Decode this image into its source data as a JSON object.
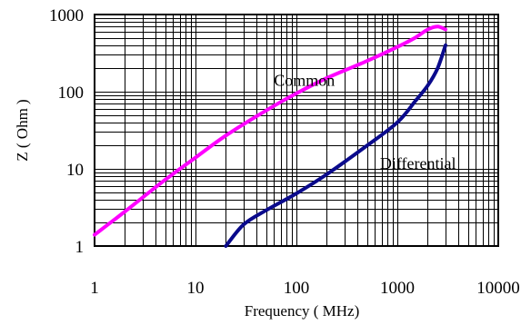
{
  "chart_data": {
    "type": "line",
    "xlabel": "Frequency ( MHz)",
    "ylabel": "Z ( Ohm )",
    "x_scale": "log",
    "y_scale": "log",
    "xlim": [
      1,
      10000
    ],
    "ylim": [
      1,
      1000
    ],
    "x_ticks": [
      {
        "value": 1,
        "label": "1"
      },
      {
        "value": 10,
        "label": "10"
      },
      {
        "value": 100,
        "label": "100"
      },
      {
        "value": 1000,
        "label": "1000"
      },
      {
        "value": 10000,
        "label": "10000"
      }
    ],
    "y_ticks": [
      {
        "value": 1,
        "label": "1"
      },
      {
        "value": 10,
        "label": "10"
      },
      {
        "value": 100,
        "label": "100"
      },
      {
        "value": 1000,
        "label": "1000"
      }
    ],
    "grid": true,
    "series": [
      {
        "name": "Common",
        "color": "#ff00ff",
        "x": [
          1,
          2,
          5,
          10,
          20,
          50,
          100,
          200,
          500,
          1000,
          1500,
          2000,
          2500,
          3000
        ],
        "y": [
          1.4,
          2.8,
          7.2,
          14,
          27,
          57,
          95,
          150,
          250,
          380,
          500,
          640,
          700,
          640
        ]
      },
      {
        "name": "Differential",
        "color": "#0a0a8c",
        "x": [
          20,
          30,
          50,
          100,
          200,
          500,
          1000,
          1500,
          2000,
          2500,
          3000
        ],
        "y": [
          1.0,
          1.9,
          2.9,
          4.8,
          8.5,
          20,
          40,
          75,
          120,
          200,
          400
        ]
      }
    ],
    "annotations": [
      {
        "text": "Common",
        "x": 120,
        "y": 120
      },
      {
        "text": "Differential",
        "x": 1600,
        "y": 10
      }
    ]
  }
}
